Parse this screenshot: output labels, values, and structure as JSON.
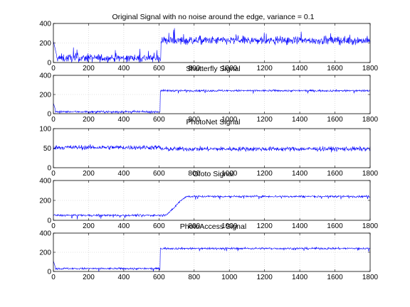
{
  "chart_data": [
    {
      "type": "line",
      "title": "Original Signal with no noise around the edge, variance = 0.1",
      "xlim": [
        0,
        1800
      ],
      "ylim": [
        0,
        400
      ],
      "xticks": [
        0,
        200,
        400,
        600,
        800,
        1000,
        1200,
        1400,
        1600,
        1800
      ],
      "yticks": [
        0,
        200,
        400
      ],
      "grid": true,
      "series_color": "#0000ff",
      "signal": {
        "x_edge": 612,
        "level_before": 45,
        "level_after": 225,
        "noise": "high",
        "ramp": 0
      }
    },
    {
      "type": "line",
      "title": "Shutterfly Signal",
      "xlim": [
        0,
        1800
      ],
      "ylim": [
        0,
        400
      ],
      "xticks": [
        0,
        200,
        400,
        600,
        800,
        1000,
        1200,
        1400,
        1600,
        1800
      ],
      "yticks": [
        0,
        200,
        400
      ],
      "grid": true,
      "series_color": "#0000ff",
      "signal": {
        "x_edge": 608,
        "level_before": 20,
        "level_after": 240,
        "noise": "low",
        "ramp": 0
      }
    },
    {
      "type": "line",
      "title": "PhotoNet Signal",
      "xlim": [
        0,
        1800
      ],
      "ylim": [
        0,
        100
      ],
      "xticks": [
        0,
        200,
        400,
        600,
        800,
        1000,
        1200,
        1400,
        1600,
        1800
      ],
      "yticks": [
        0,
        50,
        100
      ],
      "grid": true,
      "series_color": "#0000ff",
      "signal": {
        "x_edge": 610,
        "level_before": 52,
        "level_after": 48,
        "noise": "mid",
        "ramp": 0
      }
    },
    {
      "type": "line",
      "title": "Ofoto Signal",
      "xlim": [
        0,
        1800
      ],
      "ylim": [
        0,
        400
      ],
      "xticks": [
        0,
        200,
        400,
        600,
        800,
        1000,
        1200,
        1400,
        1600,
        1800
      ],
      "yticks": [
        0,
        200,
        400
      ],
      "grid": true,
      "series_color": "#0000ff",
      "signal": {
        "x_edge": 620,
        "level_before": 50,
        "level_after": 240,
        "noise": "low",
        "ramp": 150
      }
    },
    {
      "type": "line",
      "title": "PhotoAccess Signal",
      "xlim": [
        0,
        1800
      ],
      "ylim": [
        0,
        400
      ],
      "xticks": [
        0,
        200,
        400,
        600,
        800,
        1000,
        1200,
        1400,
        1600,
        1800
      ],
      "yticks": [
        0,
        200,
        400
      ],
      "grid": true,
      "series_color": "#0000ff",
      "signal": {
        "x_edge": 608,
        "level_before": 30,
        "level_after": 240,
        "noise": "low",
        "ramp": 0
      }
    }
  ]
}
